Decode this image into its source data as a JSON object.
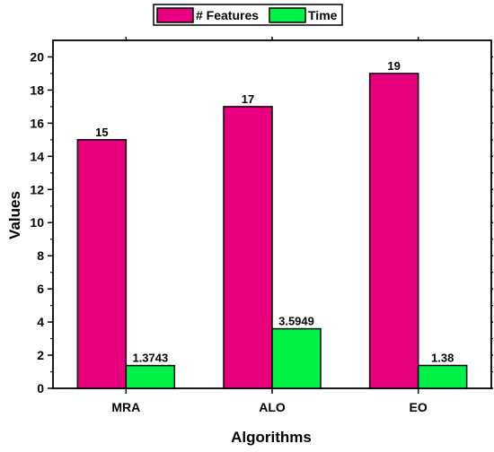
{
  "chart_data": {
    "type": "bar",
    "xlabel": "Algorithms",
    "ylabel": "Values",
    "categories": [
      "MRA",
      "ALO",
      "EO"
    ],
    "ylim": [
      0,
      21
    ],
    "yticks": [
      0,
      2,
      4,
      6,
      8,
      10,
      12,
      14,
      16,
      18,
      20
    ],
    "grid": false,
    "legend_position": "top-center",
    "series": [
      {
        "name": "# Features",
        "color": "#E8007E",
        "values": [
          15,
          17,
          19
        ],
        "value_labels": [
          "15",
          "17",
          "19"
        ]
      },
      {
        "name": "Time",
        "color": "#00F248",
        "values": [
          1.3743,
          3.5949,
          1.38
        ],
        "value_labels": [
          "1.3743",
          "3.5949",
          "1.38"
        ]
      }
    ]
  }
}
